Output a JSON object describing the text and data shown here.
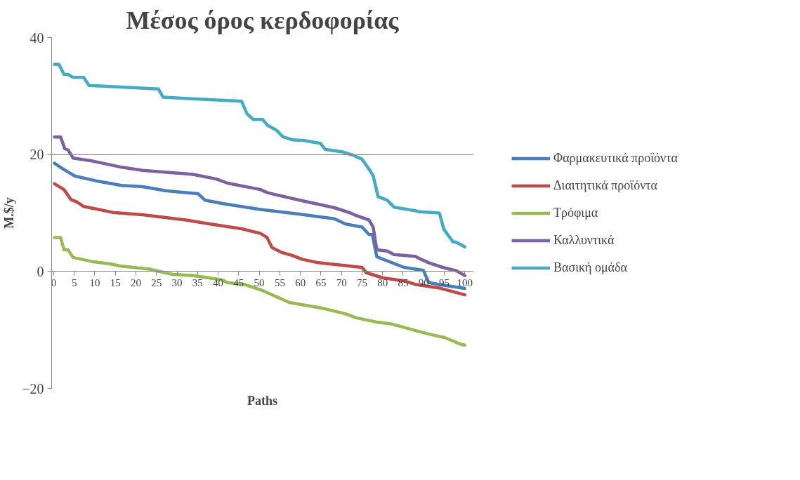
{
  "chart_data": {
    "type": "line",
    "title": "Μέσος όρος κερδοφορίας",
    "xlabel": "Paths",
    "ylabel": "M.$/y",
    "xlim": [
      -0.5,
      102
    ],
    "xticks": [
      0,
      5,
      10,
      15,
      20,
      25,
      30,
      35,
      40,
      45,
      50,
      55,
      60,
      65,
      70,
      75,
      80,
      85,
      90,
      95,
      100
    ],
    "ylim": [
      -20,
      40
    ],
    "yticks": [
      -20,
      0,
      20,
      40
    ],
    "grid": "y",
    "legend": "right",
    "marker": "none",
    "line_style": "solid",
    "series": [
      {
        "name": "Φαρμακευτικά προϊόντα",
        "color": "#4a7ebb",
        "x": [
          0.2,
          1.9,
          3.5,
          5.2,
          10.3,
          16.5,
          21.6,
          27.2,
          35.1,
          36.8,
          41.3,
          50.3,
          59.9,
          68.3,
          71,
          75,
          76.7,
          77.5,
          78.6,
          80.1,
          85.2,
          89.9,
          91.2,
          93.6,
          100
        ],
        "values": [
          18.5,
          17.7,
          17.0,
          16.3,
          15.5,
          14.7,
          14.5,
          13.8,
          13.3,
          12.2,
          11.6,
          10.6,
          9.8,
          9.0,
          8.1,
          7.6,
          6.3,
          6.3,
          2.5,
          2.1,
          0.7,
          0.2,
          -1.9,
          -2.2,
          -2.9
        ]
      },
      {
        "name": "Διαιτητικά προϊόντα",
        "color": "#be4b48",
        "x": [
          0.2,
          2.5,
          4.2,
          5.6,
          7.3,
          11,
          14.3,
          21.6,
          32.2,
          37.3,
          45.7,
          50.3,
          50.8,
          51.9,
          53.1,
          55.3,
          58.2,
          60.4,
          64.3,
          72.2,
          75,
          76,
          80.1,
          85.2,
          87.9,
          93.6,
          100
        ],
        "values": [
          15.0,
          14.0,
          12.3,
          11.9,
          11.1,
          10.6,
          10.1,
          9.7,
          8.8,
          8.2,
          7.3,
          6.5,
          6.3,
          5.8,
          4.1,
          3.3,
          2.7,
          2.1,
          1.5,
          0.9,
          0.7,
          -0.2,
          -1.1,
          -1.6,
          -2.2,
          -2.8,
          -4.0
        ]
      },
      {
        "name": "Τρόφιμα",
        "color": "#98b954",
        "x": [
          0.2,
          1.7,
          2.5,
          3.5,
          4.7,
          9.3,
          13.7,
          16.5,
          23.3,
          28.9,
          34,
          40.7,
          42.3,
          46.3,
          50.6,
          57.3,
          65.4,
          70.8,
          73.5,
          78.9,
          82.3,
          89,
          92.4,
          95.1,
          99.2,
          100
        ],
        "values": [
          5.8,
          5.8,
          3.7,
          3.7,
          2.4,
          1.7,
          1.3,
          0.9,
          0.4,
          -0.5,
          -0.7,
          -1.4,
          -1.9,
          -2.2,
          -3.2,
          -5.3,
          -6.3,
          -7.2,
          -7.9,
          -8.7,
          -9.0,
          -10.3,
          -10.9,
          -11.3,
          -12.5,
          -12.6
        ]
      },
      {
        "name": "Καλλυντικά",
        "color": "#7d60a0",
        "x": [
          0.2,
          1.7,
          2.7,
          3.5,
          4.7,
          9.3,
          16,
          21.6,
          33.9,
          39.6,
          42.3,
          50.3,
          51.9,
          53.6,
          60.4,
          68.3,
          72.2,
          73.4,
          76.7,
          77.7,
          78.6,
          81.1,
          82.8,
          87.9,
          89.6,
          91.2,
          94.6,
          98,
          100
        ],
        "values": [
          23.0,
          23.0,
          21.0,
          20.8,
          19.4,
          18.9,
          17.9,
          17.3,
          16.6,
          15.8,
          15.1,
          14.0,
          13.5,
          13.2,
          12.1,
          10.9,
          10.0,
          9.6,
          8.8,
          7.6,
          3.7,
          3.5,
          2.9,
          2.6,
          2.0,
          1.5,
          0.7,
          0.1,
          -0.7
        ]
      },
      {
        "name": "Βασική ομάδα",
        "color": "#46aac5",
        "x": [
          0.2,
          1.3,
          2.5,
          3.5,
          4.7,
          7.3,
          8.6,
          25.5,
          26.6,
          45.7,
          47,
          48.5,
          50.8,
          52,
          54.1,
          55.8,
          58.2,
          60.9,
          64.9,
          66,
          70.5,
          72.7,
          75,
          76.7,
          77.7,
          78.9,
          81.1,
          82.8,
          87.9,
          89,
          93.8,
          94.9,
          97.1,
          97.9,
          100
        ],
        "values": [
          35.4,
          35.4,
          33.7,
          33.7,
          33.2,
          33.2,
          31.8,
          31.2,
          29.8,
          29.1,
          27.0,
          26.0,
          26.0,
          25.0,
          24.2,
          23.0,
          22.5,
          22.4,
          21.9,
          20.9,
          20.4,
          19.9,
          19.2,
          17.5,
          16.4,
          12.8,
          12.2,
          11.0,
          10.4,
          10.2,
          10.0,
          7.2,
          5.1,
          5.0,
          4.2
        ]
      }
    ]
  }
}
